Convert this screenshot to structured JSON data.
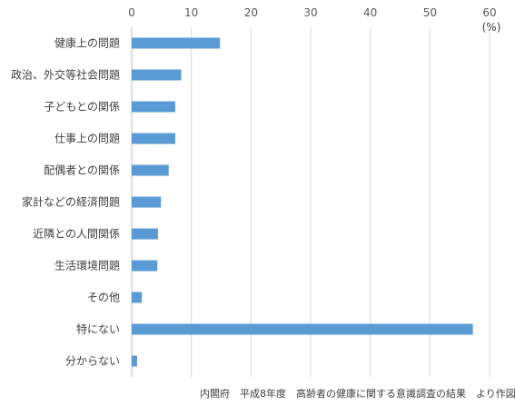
{
  "chart_data": {
    "type": "bar",
    "orientation": "horizontal",
    "categories": [
      "健康上の問題",
      "政治、外交等社会問題",
      "子どもとの関係",
      "仕事上の問題",
      "配偶者との関係",
      "家計などの経済問題",
      "近隣との人間関係",
      "生活環境問題",
      "その他",
      "特にない",
      "分からない"
    ],
    "values": [
      14.8,
      8.3,
      7.3,
      7.3,
      6.2,
      4.9,
      4.4,
      4.3,
      1.7,
      57.2,
      0.9
    ],
    "xlim": [
      0,
      60
    ],
    "xticks": [
      0,
      10,
      20,
      30,
      40,
      50,
      60
    ],
    "unit": "(%)",
    "grid": true,
    "color": "#5b9bd5",
    "source": "内閣府　平成8年度　高齢者の健康に関する意識調査の結果　より作図"
  }
}
